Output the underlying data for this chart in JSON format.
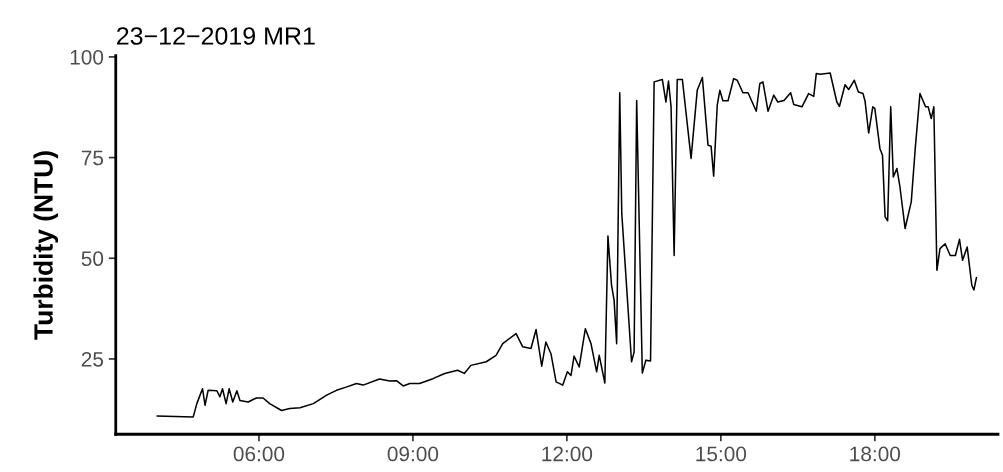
{
  "chart_data": {
    "type": "line",
    "title": "23−12−2019 MR1",
    "ylabel": "Turbidity (NTU)",
    "xlim": [
      3.21,
      20.4
    ],
    "ylim": [
      6.3,
      100.3
    ],
    "xticks": [
      {
        "value": 6,
        "label": "06:00"
      },
      {
        "value": 9,
        "label": "09:00"
      },
      {
        "value": 12,
        "label": "12:00"
      },
      {
        "value": 15,
        "label": "15:00"
      },
      {
        "value": 18,
        "label": "18:00"
      }
    ],
    "yticks": [
      25,
      50,
      75,
      100
    ],
    "grid": false,
    "series": [
      {
        "color": "#000000",
        "x": [
          4.02,
          4.72,
          4.79,
          4.9,
          4.95,
          5.01,
          5.18,
          5.24,
          5.29,
          5.36,
          5.42,
          5.49,
          5.57,
          5.63,
          5.79,
          5.95,
          6.08,
          6.21,
          6.44,
          6.6,
          6.8,
          7.06,
          7.32,
          7.51,
          7.7,
          7.9,
          8.03,
          8.35,
          8.55,
          8.68,
          8.81,
          8.94,
          9.13,
          9.39,
          9.62,
          9.87,
          10.0,
          10.13,
          10.43,
          10.62,
          10.75,
          11.01,
          11.14,
          11.3,
          11.4,
          11.51,
          11.59,
          11.69,
          11.79,
          11.92,
          12.01,
          12.08,
          12.14,
          12.24,
          12.36,
          12.47,
          12.58,
          12.63,
          12.74,
          12.8,
          12.87,
          12.92,
          12.97,
          13.03,
          13.07,
          13.26,
          13.31,
          13.36,
          13.47,
          13.54,
          13.63,
          13.7,
          13.86,
          13.93,
          13.98,
          14.03,
          14.09,
          14.15,
          14.25,
          14.42,
          14.54,
          14.64,
          14.75,
          14.81,
          14.86,
          14.93,
          14.98,
          15.04,
          15.14,
          15.25,
          15.32,
          15.43,
          15.53,
          15.69,
          15.76,
          15.82,
          15.92,
          16.03,
          16.11,
          16.23,
          16.36,
          16.42,
          16.58,
          16.71,
          16.81,
          16.86,
          16.94,
          17.13,
          17.26,
          17.31,
          17.42,
          17.49,
          17.6,
          17.68,
          17.77,
          17.81,
          17.88,
          17.96,
          18.0,
          18.1,
          18.15,
          18.2,
          18.25,
          18.31,
          18.36,
          18.43,
          18.49,
          18.59,
          18.71,
          18.79,
          18.88,
          18.99,
          19.04,
          19.1,
          19.15,
          19.21,
          19.27,
          19.37,
          19.47,
          19.57,
          19.65,
          19.71,
          19.8,
          19.89,
          19.93,
          19.98
        ],
        "values": [
          10.8,
          10.6,
          13.9,
          17.6,
          13.5,
          17.2,
          17.1,
          15.6,
          17.6,
          13.9,
          17.6,
          14.3,
          17.1,
          14.7,
          14.3,
          15.3,
          15.3,
          13.9,
          12.2,
          12.7,
          12.9,
          13.9,
          16.0,
          17.2,
          18.0,
          18.9,
          18.5,
          20.0,
          19.5,
          19.6,
          18.3,
          18.9,
          18.9,
          20.1,
          21.4,
          22.2,
          21.4,
          23.4,
          24.3,
          25.9,
          28.8,
          31.3,
          28.0,
          27.6,
          32.3,
          23.2,
          29.2,
          26.3,
          19.3,
          18.5,
          21.8,
          20.9,
          25.7,
          23.0,
          32.5,
          28.8,
          21.8,
          25.9,
          19.0,
          55.5,
          43.3,
          39.6,
          28.8,
          91.1,
          61.1,
          24.3,
          26.7,
          89.2,
          21.5,
          24.7,
          24.5,
          93.8,
          94.4,
          88.8,
          94.0,
          87.6,
          50.7,
          94.4,
          94.4,
          74.8,
          91.7,
          94.9,
          78.1,
          77.8,
          70.4,
          88.0,
          91.7,
          89.1,
          89.1,
          94.6,
          94.2,
          91.1,
          91.1,
          86.5,
          93.4,
          93.8,
          86.5,
          90.5,
          88.8,
          89.2,
          91.1,
          88.2,
          87.6,
          90.9,
          90.2,
          95.9,
          95.7,
          96.0,
          88.8,
          87.7,
          93.1,
          91.9,
          94.2,
          91.3,
          90.9,
          89.0,
          81.1,
          87.6,
          87.2,
          77.2,
          75.6,
          60.3,
          59.3,
          87.6,
          70.2,
          72.3,
          67.7,
          57.4,
          64.0,
          77.6,
          90.9,
          87.6,
          87.6,
          84.7,
          87.6,
          47.0,
          52.4,
          53.6,
          50.7,
          50.7,
          54.7,
          49.5,
          52.8,
          43.3,
          42.1,
          45.2
        ]
      }
    ]
  }
}
